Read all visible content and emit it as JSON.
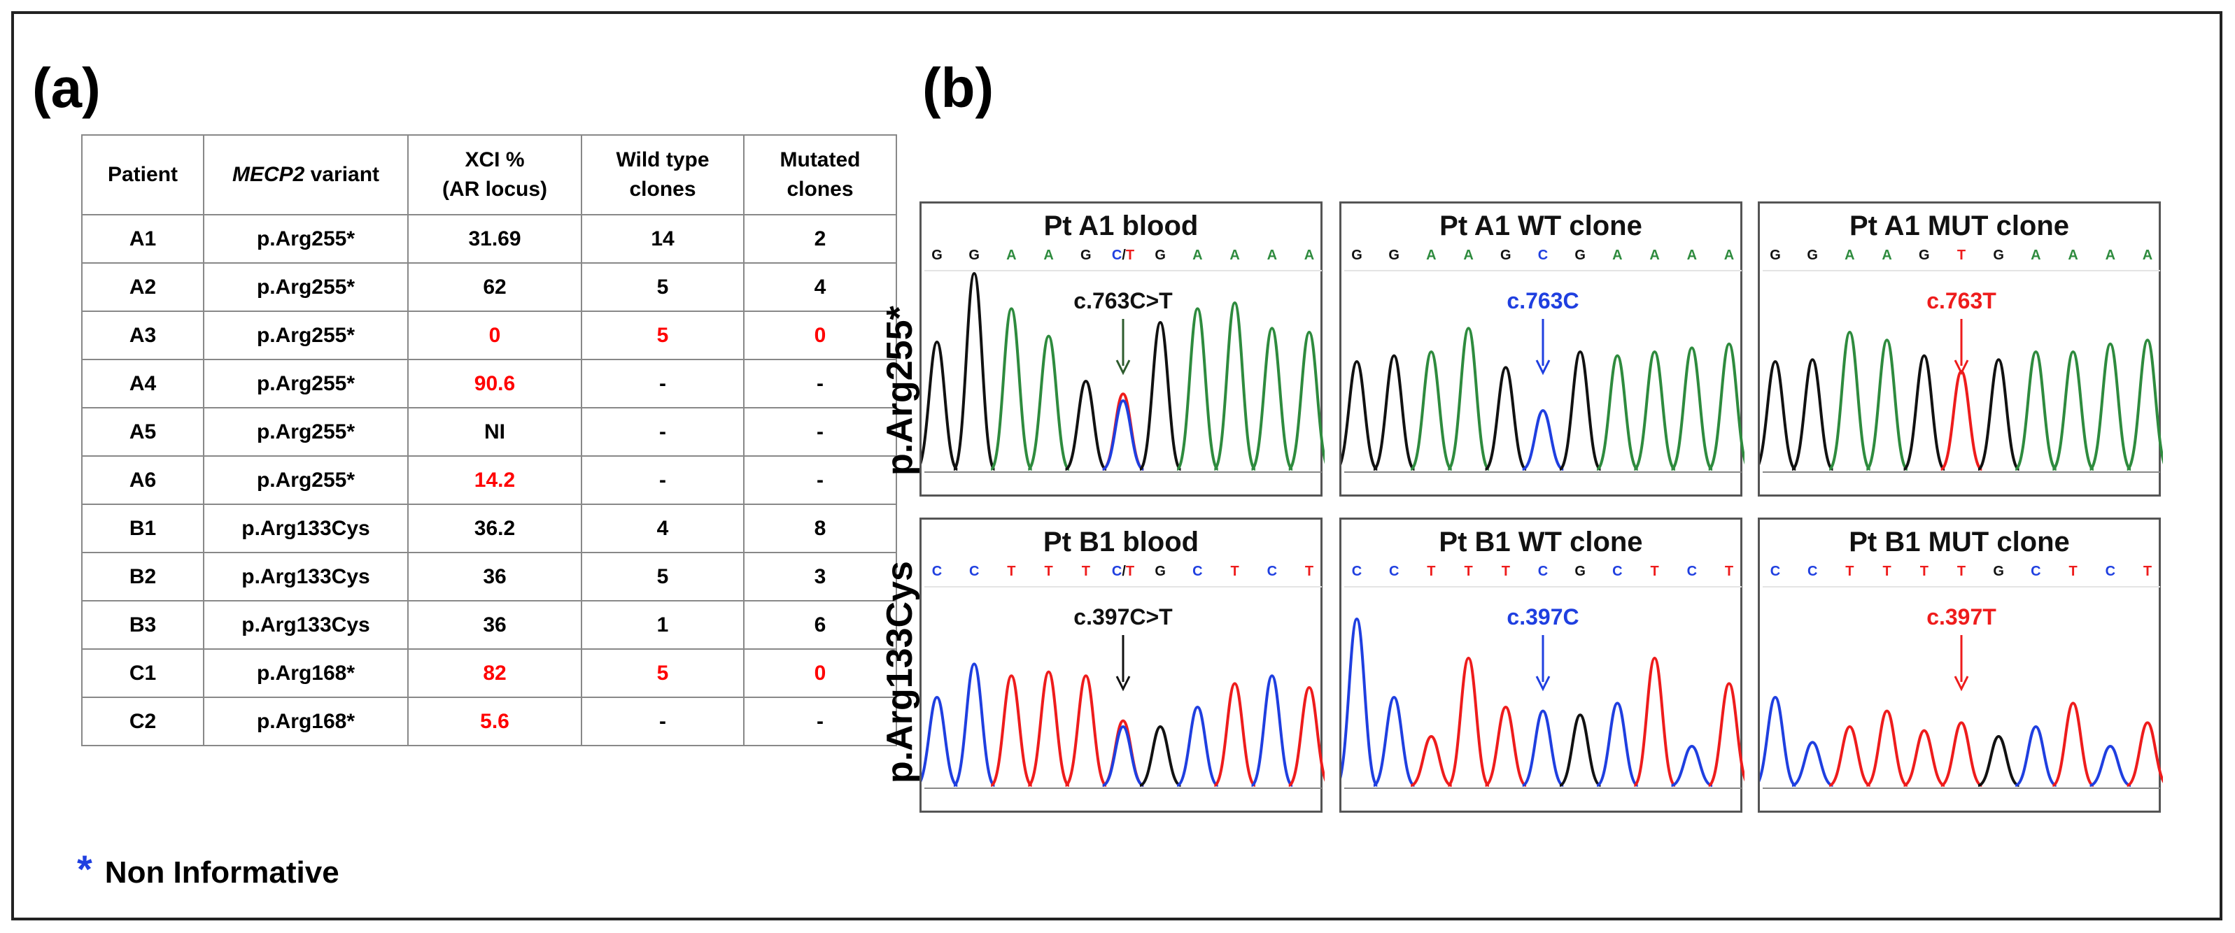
{
  "panel_a_label": "(a)",
  "panel_b_label": "(b)",
  "table": {
    "headers": [
      "Patient",
      "MECP2 variant",
      "XCI %\n(AR locus)",
      "Wild type\nclones",
      "Mutated\nclones"
    ],
    "rows": [
      {
        "patient": "A1",
        "variant": "p.Arg255*",
        "xci": "31.69",
        "wt": "14",
        "mut": "2",
        "red": false
      },
      {
        "patient": "A2",
        "variant": "p.Arg255*",
        "xci": "62",
        "wt": "5",
        "mut": "4",
        "red": false
      },
      {
        "patient": "A3",
        "variant": "p.Arg255*",
        "xci": "0",
        "wt": "5",
        "mut": "0",
        "red": true
      },
      {
        "patient": "A4",
        "variant": "p.Arg255*",
        "xci": "90.6",
        "wt": "-",
        "mut": "-",
        "red": "xci"
      },
      {
        "patient": "A5",
        "variant": "p.Arg255*",
        "xci": "NI",
        "wt": "-",
        "mut": "-",
        "red": false
      },
      {
        "patient": "A6",
        "variant": "p.Arg255*",
        "xci": "14.2",
        "wt": "-",
        "mut": "-",
        "red": "xci"
      },
      {
        "patient": "B1",
        "variant": "p.Arg133Cys",
        "xci": "36.2",
        "wt": "4",
        "mut": "8",
        "red": false
      },
      {
        "patient": "B2",
        "variant": "p.Arg133Cys",
        "xci": "36",
        "wt": "5",
        "mut": "3",
        "red": false
      },
      {
        "patient": "B3",
        "variant": "p.Arg133Cys",
        "xci": "36",
        "wt": "1",
        "mut": "6",
        "red": false
      },
      {
        "patient": "C1",
        "variant": "p.Arg168*",
        "xci": "82",
        "wt": "5",
        "mut": "0",
        "red": true
      },
      {
        "patient": "C2",
        "variant": "p.Arg168*",
        "xci": "5.6",
        "wt": "-",
        "mut": "-",
        "red": "xci"
      }
    ]
  },
  "legend": {
    "star": "*",
    "text": "Non Informative"
  },
  "row_labels": [
    "p.Arg255*",
    "p.Arg133Cys"
  ],
  "colors": {
    "A": "#2e8b3e",
    "C": "#1f3fe0",
    "G": "#111111",
    "T": "#ee1c1c",
    "mixed": "#1f3fe0"
  },
  "chromatograms": [
    {
      "title": "Pt A1 blood",
      "bases": [
        "G",
        "G",
        "A",
        "A",
        "G",
        "C/T",
        "G",
        "A",
        "A",
        "A",
        "A"
      ],
      "note": "c.763C>T",
      "note_color": "#111111",
      "arrow_color": "#2e5c2e"
    },
    {
      "title": "Pt A1 WT clone",
      "bases": [
        "G",
        "G",
        "A",
        "A",
        "G",
        "C",
        "G",
        "A",
        "A",
        "A",
        "A"
      ],
      "note": "c.763C",
      "note_color": "#1f3fe0",
      "arrow_color": "#1f3fe0"
    },
    {
      "title": "Pt A1 MUT clone",
      "bases": [
        "G",
        "G",
        "A",
        "A",
        "G",
        "T",
        "G",
        "A",
        "A",
        "A",
        "A"
      ],
      "note": "c.763T",
      "note_color": "#ee1c1c",
      "arrow_color": "#ee1c1c"
    },
    {
      "title": "Pt B1 blood",
      "bases": [
        "C",
        "C",
        "T",
        "T",
        "T",
        "C/T",
        "G",
        "C",
        "T",
        "C",
        "T"
      ],
      "note": "c.397C>T",
      "note_color": "#111111",
      "arrow_color": "#111111"
    },
    {
      "title": "Pt B1 WT clone",
      "bases": [
        "C",
        "C",
        "T",
        "T",
        "T",
        "C",
        "G",
        "C",
        "T",
        "C",
        "T"
      ],
      "note": "c.397C",
      "note_color": "#1f3fe0",
      "arrow_color": "#1f3fe0"
    },
    {
      "title": "Pt B1 MUT clone",
      "bases": [
        "C",
        "C",
        "T",
        "T",
        "T",
        "T",
        "G",
        "C",
        "T",
        "C",
        "T"
      ],
      "note": "c.397T",
      "note_color": "#ee1c1c",
      "arrow_color": "#ee1c1c"
    }
  ]
}
